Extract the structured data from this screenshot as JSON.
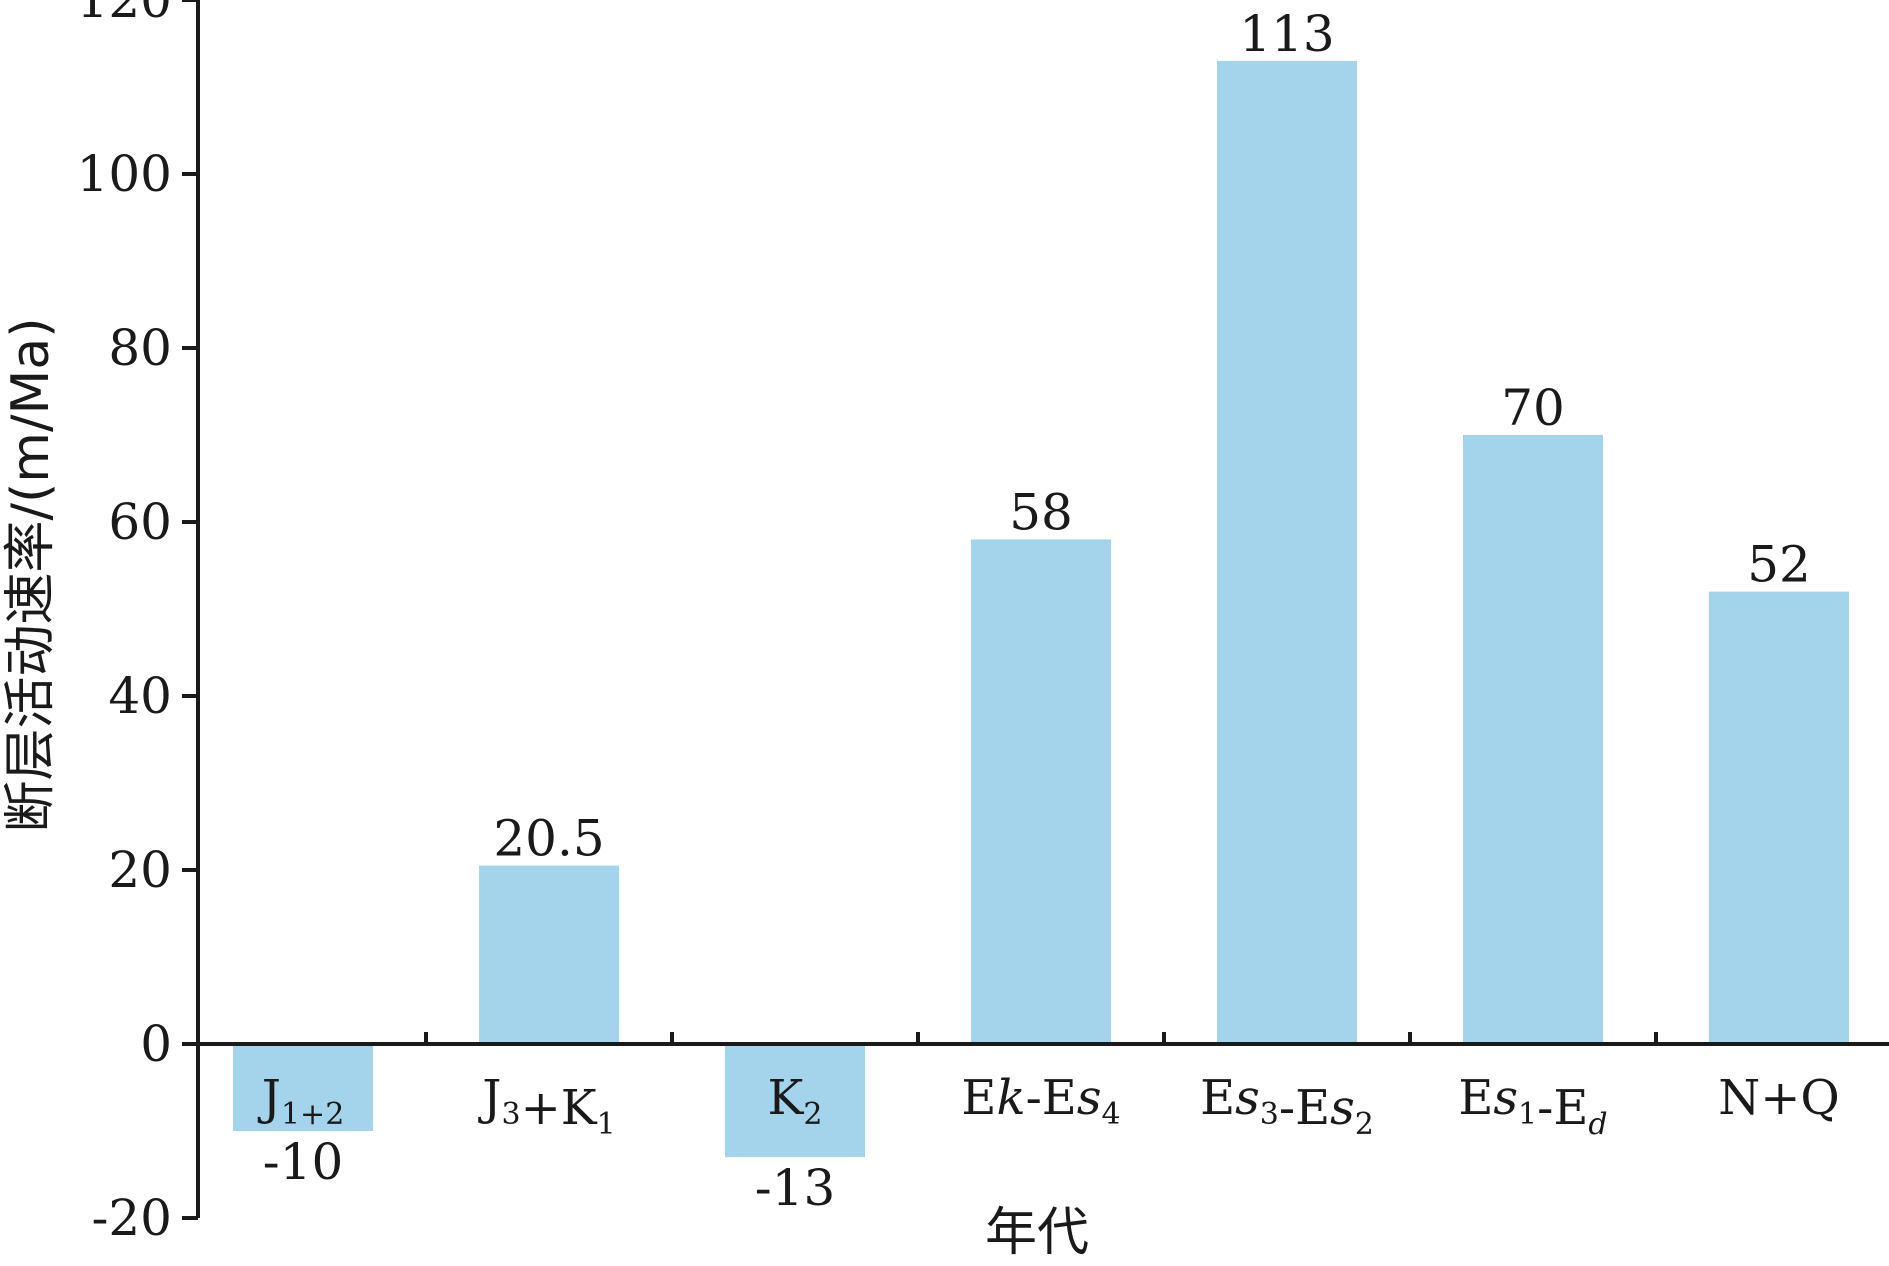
{
  "chart_data": {
    "type": "bar",
    "xlabel": "年代",
    "ylabel": "断层活动速率/(m/Ma)",
    "ylim": [
      -20,
      120
    ],
    "yticks": [
      -20,
      0,
      20,
      40,
      60,
      80,
      100,
      120
    ],
    "grid": false,
    "bar_color": "#a4d4ec",
    "categories": [
      {
        "base": "J",
        "sub": "1+2"
      },
      {
        "base": "J",
        "sub": "3",
        "rest": "+K",
        "sub2": "1"
      },
      {
        "base": "K",
        "sub": "2"
      },
      {
        "base": "Ek-Es",
        "sub": "4"
      },
      {
        "base": "Es",
        "sub": "3",
        "rest": "-Es",
        "sub2": "2"
      },
      {
        "base": "Es",
        "sub": "1",
        "rest": "-E",
        "sub2": "d"
      },
      {
        "base": "N+Q"
      }
    ],
    "values": [
      -10,
      20.5,
      -13,
      58,
      113,
      70,
      52
    ],
    "value_labels": [
      "-10",
      "20.5",
      "-13",
      "58",
      "113",
      "70",
      "52"
    ]
  }
}
